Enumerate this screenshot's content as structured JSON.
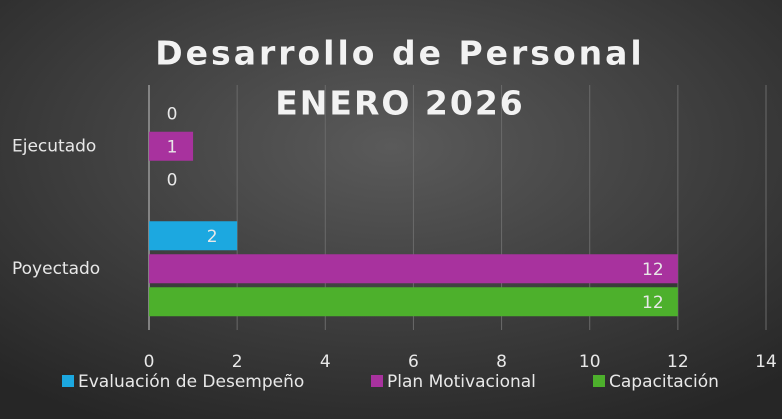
{
  "chart_data": {
    "type": "barh",
    "title": "Desarrollo de Personal",
    "subtitle": "ENERO 2026",
    "categories": [
      "Ejecutado",
      "Poyectado"
    ],
    "series": [
      {
        "name": "Evaluación de Desempeño",
        "color": "#1ca8e0",
        "values": [
          0,
          2
        ]
      },
      {
        "name": "Plan Motivacional",
        "color": "#a8329e",
        "values": [
          1,
          12
        ]
      },
      {
        "name": "Capacitación",
        "color": "#4db02c",
        "values": [
          0,
          12
        ]
      }
    ],
    "xlim": [
      0,
      14
    ],
    "xticks": [
      0,
      2,
      4,
      6,
      8,
      10,
      12,
      14
    ],
    "grid": true,
    "legend": "bottom"
  }
}
